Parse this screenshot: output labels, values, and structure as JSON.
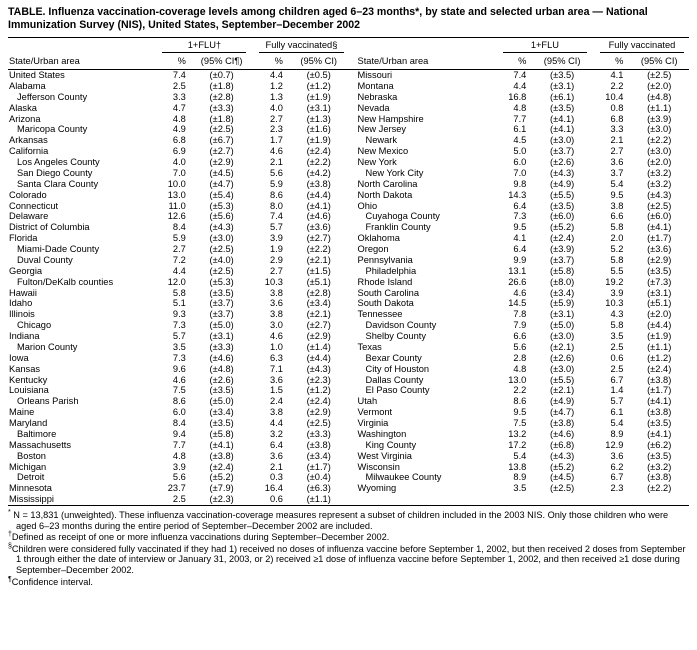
{
  "title": "TABLE. Influenza vaccination-coverage levels among children aged 6–23 months*, by state and selected urban area — National Immunization Survey (NIS), United States, September–December 2002",
  "table": {
    "header": {
      "state_col": "State/Urban area",
      "left_group1": "1+FLU†",
      "left_group2": "Fully vaccinated§",
      "right_group1": "1+FLU",
      "right_group2": "Fully vaccinated",
      "pct": "%",
      "ci_with_note": "(95% CI¶)",
      "ci": "(95% CI)"
    },
    "left_rows": [
      {
        "area": "United States",
        "indent": 0,
        "flu_pct": "7.4",
        "flu_ci": "(±0.7)",
        "fully_pct": "4.4",
        "fully_ci": "(±0.5)"
      },
      {
        "area": "Alabama",
        "indent": 0,
        "flu_pct": "2.5",
        "flu_ci": "(±1.8)",
        "fully_pct": "1.2",
        "fully_ci": "(±1.2)"
      },
      {
        "area": "Jefferson County",
        "indent": 1,
        "flu_pct": "3.3",
        "flu_ci": "(±2.8)",
        "fully_pct": "1.3",
        "fully_ci": "(±1.9)"
      },
      {
        "area": "Alaska",
        "indent": 0,
        "flu_pct": "4.7",
        "flu_ci": "(±3.3)",
        "fully_pct": "4.0",
        "fully_ci": "(±3.1)"
      },
      {
        "area": "Arizona",
        "indent": 0,
        "flu_pct": "4.8",
        "flu_ci": "(±1.8)",
        "fully_pct": "2.7",
        "fully_ci": "(±1.3)"
      },
      {
        "area": "Maricopa County",
        "indent": 1,
        "flu_pct": "4.9",
        "flu_ci": "(±2.5)",
        "fully_pct": "2.3",
        "fully_ci": "(±1.6)"
      },
      {
        "area": "Arkansas",
        "indent": 0,
        "flu_pct": "6.8",
        "flu_ci": "(±6.7)",
        "fully_pct": "1.7",
        "fully_ci": "(±1.9)"
      },
      {
        "area": "California",
        "indent": 0,
        "flu_pct": "6.9",
        "flu_ci": "(±2.7)",
        "fully_pct": "4.6",
        "fully_ci": "(±2.4)"
      },
      {
        "area": "Los Angeles County",
        "indent": 1,
        "flu_pct": "4.0",
        "flu_ci": "(±2.9)",
        "fully_pct": "2.1",
        "fully_ci": "(±2.2)"
      },
      {
        "area": "San Diego County",
        "indent": 1,
        "flu_pct": "7.0",
        "flu_ci": "(±4.5)",
        "fully_pct": "5.6",
        "fully_ci": "(±4.2)"
      },
      {
        "area": "Santa Clara County",
        "indent": 1,
        "flu_pct": "10.0",
        "flu_ci": "(±4.7)",
        "fully_pct": "5.9",
        "fully_ci": "(±3.8)"
      },
      {
        "area": "Colorado",
        "indent": 0,
        "flu_pct": "13.0",
        "flu_ci": "(±5.4)",
        "fully_pct": "8.6",
        "fully_ci": "(±4.4)"
      },
      {
        "area": "Connecticut",
        "indent": 0,
        "flu_pct": "11.0",
        "flu_ci": "(±5.3)",
        "fully_pct": "8.0",
        "fully_ci": "(±4.1)"
      },
      {
        "area": "Delaware",
        "indent": 0,
        "flu_pct": "12.6",
        "flu_ci": "(±5.6)",
        "fully_pct": "7.4",
        "fully_ci": "(±4.6)"
      },
      {
        "area": "District of Columbia",
        "indent": 0,
        "flu_pct": "8.4",
        "flu_ci": "(±4.3)",
        "fully_pct": "5.7",
        "fully_ci": "(±3.6)"
      },
      {
        "area": "Florida",
        "indent": 0,
        "flu_pct": "5.9",
        "flu_ci": "(±3.0)",
        "fully_pct": "3.9",
        "fully_ci": "(±2.7)"
      },
      {
        "area": "Miami-Dade County",
        "indent": 1,
        "flu_pct": "2.7",
        "flu_ci": "(±2.5)",
        "fully_pct": "1.9",
        "fully_ci": "(±2.2)"
      },
      {
        "area": "Duval County",
        "indent": 1,
        "flu_pct": "7.2",
        "flu_ci": "(±4.0)",
        "fully_pct": "2.9",
        "fully_ci": "(±2.1)"
      },
      {
        "area": "Georgia",
        "indent": 0,
        "flu_pct": "4.4",
        "flu_ci": "(±2.5)",
        "fully_pct": "2.7",
        "fully_ci": "(±1.5)"
      },
      {
        "area": "Fulton/DeKalb counties",
        "indent": 1,
        "flu_pct": "12.0",
        "flu_ci": "(±5.3)",
        "fully_pct": "10.3",
        "fully_ci": "(±5.1)"
      },
      {
        "area": "Hawaii",
        "indent": 0,
        "flu_pct": "5.8",
        "flu_ci": "(±3.5)",
        "fully_pct": "3.8",
        "fully_ci": "(±2.8)"
      },
      {
        "area": "Idaho",
        "indent": 0,
        "flu_pct": "5.1",
        "flu_ci": "(±3.7)",
        "fully_pct": "3.6",
        "fully_ci": "(±3.4)"
      },
      {
        "area": "Illinois",
        "indent": 0,
        "flu_pct": "9.3",
        "flu_ci": "(±3.7)",
        "fully_pct": "3.8",
        "fully_ci": "(±2.1)"
      },
      {
        "area": "Chicago",
        "indent": 1,
        "flu_pct": "7.3",
        "flu_ci": "(±5.0)",
        "fully_pct": "3.0",
        "fully_ci": "(±2.7)"
      },
      {
        "area": "Indiana",
        "indent": 0,
        "flu_pct": "5.7",
        "flu_ci": "(±3.1)",
        "fully_pct": "4.6",
        "fully_ci": "(±2.9)"
      },
      {
        "area": "Marion County",
        "indent": 1,
        "flu_pct": "3.5",
        "flu_ci": "(±3.3)",
        "fully_pct": "1.0",
        "fully_ci": "(±1.4)"
      },
      {
        "area": "Iowa",
        "indent": 0,
        "flu_pct": "7.3",
        "flu_ci": "(±4.6)",
        "fully_pct": "6.3",
        "fully_ci": "(±4.4)"
      },
      {
        "area": "Kansas",
        "indent": 0,
        "flu_pct": "9.6",
        "flu_ci": "(±4.8)",
        "fully_pct": "7.1",
        "fully_ci": "(±4.3)"
      },
      {
        "area": "Kentucky",
        "indent": 0,
        "flu_pct": "4.6",
        "flu_ci": "(±2.6)",
        "fully_pct": "3.6",
        "fully_ci": "(±2.3)"
      },
      {
        "area": "Louisiana",
        "indent": 0,
        "flu_pct": "7.5",
        "flu_ci": "(±3.5)",
        "fully_pct": "1.5",
        "fully_ci": "(±1.2)"
      },
      {
        "area": "Orleans Parish",
        "indent": 1,
        "flu_pct": "8.6",
        "flu_ci": "(±5.0)",
        "fully_pct": "2.4",
        "fully_ci": "(±2.4)"
      },
      {
        "area": "Maine",
        "indent": 0,
        "flu_pct": "6.0",
        "flu_ci": "(±3.4)",
        "fully_pct": "3.8",
        "fully_ci": "(±2.9)"
      },
      {
        "area": "Maryland",
        "indent": 0,
        "flu_pct": "8.4",
        "flu_ci": "(±3.5)",
        "fully_pct": "4.4",
        "fully_ci": "(±2.5)"
      },
      {
        "area": "Baltimore",
        "indent": 1,
        "flu_pct": "9.4",
        "flu_ci": "(±5.8)",
        "fully_pct": "3.2",
        "fully_ci": "(±3.3)"
      },
      {
        "area": "Massachusetts",
        "indent": 0,
        "flu_pct": "7.7",
        "flu_ci": "(±4.1)",
        "fully_pct": "6.4",
        "fully_ci": "(±3.8)"
      },
      {
        "area": "Boston",
        "indent": 1,
        "flu_pct": "4.8",
        "flu_ci": "(±3.8)",
        "fully_pct": "3.6",
        "fully_ci": "(±3.4)"
      },
      {
        "area": "Michigan",
        "indent": 0,
        "flu_pct": "3.9",
        "flu_ci": "(±2.4)",
        "fully_pct": "2.1",
        "fully_ci": "(±1.7)"
      },
      {
        "area": "Detroit",
        "indent": 1,
        "flu_pct": "5.6",
        "flu_ci": "(±5.2)",
        "fully_pct": "0.3",
        "fully_ci": "(±0.4)"
      },
      {
        "area": "Minnesota",
        "indent": 0,
        "flu_pct": "23.7",
        "flu_ci": "(±7.9)",
        "fully_pct": "16.4",
        "fully_ci": "(±6.3)"
      },
      {
        "area": "Mississippi",
        "indent": 0,
        "flu_pct": "2.5",
        "flu_ci": "(±2.3)",
        "fully_pct": "0.6",
        "fully_ci": "(±1.1)"
      }
    ],
    "right_rows": [
      {
        "area": "Missouri",
        "indent": 0,
        "flu_pct": "7.4",
        "flu_ci": "(±3.5)",
        "fully_pct": "4.1",
        "fully_ci": "(±2.5)"
      },
      {
        "area": "Montana",
        "indent": 0,
        "flu_pct": "4.4",
        "flu_ci": "(±3.1)",
        "fully_pct": "2.2",
        "fully_ci": "(±2.0)"
      },
      {
        "area": "Nebraska",
        "indent": 0,
        "flu_pct": "16.8",
        "flu_ci": "(±6.1)",
        "fully_pct": "10.4",
        "fully_ci": "(±4.8)"
      },
      {
        "area": "Nevada",
        "indent": 0,
        "flu_pct": "4.8",
        "flu_ci": "(±3.5)",
        "fully_pct": "0.8",
        "fully_ci": "(±1.1)"
      },
      {
        "area": "New Hampshire",
        "indent": 0,
        "flu_pct": "7.7",
        "flu_ci": "(±4.1)",
        "fully_pct": "6.8",
        "fully_ci": "(±3.9)"
      },
      {
        "area": "New Jersey",
        "indent": 0,
        "flu_pct": "6.1",
        "flu_ci": "(±4.1)",
        "fully_pct": "3.3",
        "fully_ci": "(±3.0)"
      },
      {
        "area": "Newark",
        "indent": 1,
        "flu_pct": "4.5",
        "flu_ci": "(±3.0)",
        "fully_pct": "2.1",
        "fully_ci": "(±2.2)"
      },
      {
        "area": "New Mexico",
        "indent": 0,
        "flu_pct": "5.0",
        "flu_ci": "(±3.7)",
        "fully_pct": "2.7",
        "fully_ci": "(±3.0)"
      },
      {
        "area": "New York",
        "indent": 0,
        "flu_pct": "6.0",
        "flu_ci": "(±2.6)",
        "fully_pct": "3.6",
        "fully_ci": "(±2.0)"
      },
      {
        "area": "New York City",
        "indent": 1,
        "flu_pct": "7.0",
        "flu_ci": "(±4.3)",
        "fully_pct": "3.7",
        "fully_ci": "(±3.2)"
      },
      {
        "area": "North Carolina",
        "indent": 0,
        "flu_pct": "9.8",
        "flu_ci": "(±4.9)",
        "fully_pct": "5.4",
        "fully_ci": "(±3.2)"
      },
      {
        "area": "North Dakota",
        "indent": 0,
        "flu_pct": "14.3",
        "flu_ci": "(±5.5)",
        "fully_pct": "9.5",
        "fully_ci": "(±4.3)"
      },
      {
        "area": "Ohio",
        "indent": 0,
        "flu_pct": "6.4",
        "flu_ci": "(±3.5)",
        "fully_pct": "3.8",
        "fully_ci": "(±2.5)"
      },
      {
        "area": "Cuyahoga County",
        "indent": 1,
        "flu_pct": "7.3",
        "flu_ci": "(±6.0)",
        "fully_pct": "6.6",
        "fully_ci": "(±6.0)"
      },
      {
        "area": "Franklin County",
        "indent": 1,
        "flu_pct": "9.5",
        "flu_ci": "(±5.2)",
        "fully_pct": "5.8",
        "fully_ci": "(±4.1)"
      },
      {
        "area": "Oklahoma",
        "indent": 0,
        "flu_pct": "4.1",
        "flu_ci": "(±2.4)",
        "fully_pct": "2.0",
        "fully_ci": "(±1.7)"
      },
      {
        "area": "Oregon",
        "indent": 0,
        "flu_pct": "6.4",
        "flu_ci": "(±3.9)",
        "fully_pct": "5.2",
        "fully_ci": "(±3.6)"
      },
      {
        "area": "Pennsylvania",
        "indent": 0,
        "flu_pct": "9.9",
        "flu_ci": "(±3.7)",
        "fully_pct": "5.8",
        "fully_ci": "(±2.9)"
      },
      {
        "area": "Philadelphia",
        "indent": 1,
        "flu_pct": "13.1",
        "flu_ci": "(±5.8)",
        "fully_pct": "5.5",
        "fully_ci": "(±3.5)"
      },
      {
        "area": "Rhode Island",
        "indent": 0,
        "flu_pct": "26.6",
        "flu_ci": "(±8.0)",
        "fully_pct": "19.2",
        "fully_ci": "(±7.3)"
      },
      {
        "area": "South Carolina",
        "indent": 0,
        "flu_pct": "4.6",
        "flu_ci": "(±3.4)",
        "fully_pct": "3.9",
        "fully_ci": "(±3.1)"
      },
      {
        "area": "South Dakota",
        "indent": 0,
        "flu_pct": "14.5",
        "flu_ci": "(±5.9)",
        "fully_pct": "10.3",
        "fully_ci": "(±5.1)"
      },
      {
        "area": "Tennessee",
        "indent": 0,
        "flu_pct": "7.8",
        "flu_ci": "(±3.1)",
        "fully_pct": "4.3",
        "fully_ci": "(±2.0)"
      },
      {
        "area": "Davidson County",
        "indent": 1,
        "flu_pct": "7.9",
        "flu_ci": "(±5.0)",
        "fully_pct": "5.8",
        "fully_ci": "(±4.4)"
      },
      {
        "area": "Shelby County",
        "indent": 1,
        "flu_pct": "6.6",
        "flu_ci": "(±3.0)",
        "fully_pct": "3.5",
        "fully_ci": "(±1.9)"
      },
      {
        "area": "Texas",
        "indent": 0,
        "flu_pct": "5.6",
        "flu_ci": "(±2.1)",
        "fully_pct": "2.5",
        "fully_ci": "(±1.1)"
      },
      {
        "area": "Bexar County",
        "indent": 1,
        "flu_pct": "2.8",
        "flu_ci": "(±2.6)",
        "fully_pct": "0.6",
        "fully_ci": "(±1.2)"
      },
      {
        "area": "City of Houston",
        "indent": 1,
        "flu_pct": "4.8",
        "flu_ci": "(±3.0)",
        "fully_pct": "2.5",
        "fully_ci": "(±2.4)"
      },
      {
        "area": "Dallas County",
        "indent": 1,
        "flu_pct": "13.0",
        "flu_ci": "(±5.5)",
        "fully_pct": "6.7",
        "fully_ci": "(±3.8)"
      },
      {
        "area": "El Paso County",
        "indent": 1,
        "flu_pct": "2.2",
        "flu_ci": "(±2.1)",
        "fully_pct": "1.4",
        "fully_ci": "(±1.7)"
      },
      {
        "area": "Utah",
        "indent": 0,
        "flu_pct": "8.6",
        "flu_ci": "(±4.9)",
        "fully_pct": "5.7",
        "fully_ci": "(±4.1)"
      },
      {
        "area": "Vermont",
        "indent": 0,
        "flu_pct": "9.5",
        "flu_ci": "(±4.7)",
        "fully_pct": "6.1",
        "fully_ci": "(±3.8)"
      },
      {
        "area": "Virginia",
        "indent": 0,
        "flu_pct": "7.5",
        "flu_ci": "(±3.8)",
        "fully_pct": "5.4",
        "fully_ci": "(±3.5)"
      },
      {
        "area": "Washington",
        "indent": 0,
        "flu_pct": "13.2",
        "flu_ci": "(±4.6)",
        "fully_pct": "8.9",
        "fully_ci": "(±4.1)"
      },
      {
        "area": "King County",
        "indent": 1,
        "flu_pct": "17.2",
        "flu_ci": "(±6.8)",
        "fully_pct": "12.9",
        "fully_ci": "(±6.2)"
      },
      {
        "area": "West Virginia",
        "indent": 0,
        "flu_pct": "5.4",
        "flu_ci": "(±4.3)",
        "fully_pct": "3.6",
        "fully_ci": "(±3.5)"
      },
      {
        "area": "Wisconsin",
        "indent": 0,
        "flu_pct": "13.8",
        "flu_ci": "(±5.2)",
        "fully_pct": "6.2",
        "fully_ci": "(±3.2)"
      },
      {
        "area": "Milwaukee County",
        "indent": 1,
        "flu_pct": "8.9",
        "flu_ci": "(±4.5)",
        "fully_pct": "6.7",
        "fully_ci": "(±3.8)"
      },
      {
        "area": "Wyoming",
        "indent": 0,
        "flu_pct": "3.5",
        "flu_ci": "(±2.5)",
        "fully_pct": "2.3",
        "fully_ci": "(±2.2)"
      }
    ]
  },
  "footnotes": [
    {
      "symbol": "*",
      "text": " N = 13,831 (unweighted). These influenza vaccination-coverage measures represent a subset of children included in the 2003 NIS. Only those children who were aged 6–23 months during the entire period of September–December 2002 are included."
    },
    {
      "symbol": "†",
      "text": "Defined as receipt of one or more influenza vaccinations during September–December 2002."
    },
    {
      "symbol": "§",
      "text": "Children were considered fully vaccinated if they had 1) received no doses of influenza vaccine before September 1, 2002, but then received 2 doses from September 1 through either the date of interview or January 31, 2003, or 2) received ≥1 dose of influenza vaccine before September 1, 2002, and then received ≥1 dose during September–December 2002."
    },
    {
      "symbol": "¶",
      "text": "Confidence interval."
    }
  ]
}
